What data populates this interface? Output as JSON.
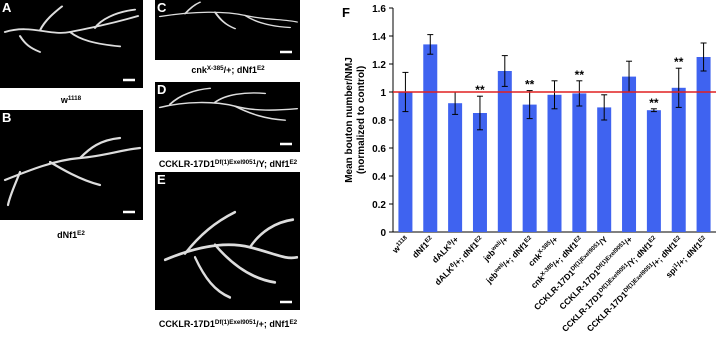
{
  "panels": [
    {
      "letter": "A",
      "caption": [
        {
          "text": "w"
        },
        {
          "sup": "1118"
        }
      ]
    },
    {
      "letter": "B",
      "caption": [
        {
          "text": "dNf1"
        },
        {
          "sup": "E2"
        }
      ]
    },
    {
      "letter": "C",
      "caption": [
        {
          "text": "cnk"
        },
        {
          "sup": "X-385"
        },
        {
          "text": "/+; dNf1"
        },
        {
          "sup": "E2"
        }
      ]
    },
    {
      "letter": "D",
      "caption": [
        {
          "text": "CCKLR-17D1"
        },
        {
          "sup": "Df(1)Exel9051"
        },
        {
          "text": "/Y; dNf1"
        },
        {
          "sup": "E2"
        }
      ]
    },
    {
      "letter": "E",
      "caption": [
        {
          "text": "CCKLR-17D1"
        },
        {
          "sup": "Df(1)Exel9051"
        },
        {
          "text": "/+; dNf1"
        },
        {
          "sup": "E2"
        }
      ]
    }
  ],
  "chart_data": {
    "type": "bar",
    "letter": "F",
    "ylabel": [
      "Mean bouton number/NMJ",
      "(normalized to control)"
    ],
    "categories": [
      [
        {
          "text": "w"
        },
        {
          "sup": "1118"
        }
      ],
      [
        {
          "text": "dNf1"
        },
        {
          "sup": "E2"
        }
      ],
      [
        {
          "text": "dALK"
        },
        {
          "sup": "8"
        },
        {
          "text": "/+"
        }
      ],
      [
        {
          "text": "dALK"
        },
        {
          "sup": "8"
        },
        {
          "text": "/+; dNf1"
        },
        {
          "sup": "E2"
        }
      ],
      [
        {
          "text": "jeb"
        },
        {
          "sup": "weli"
        },
        {
          "text": "/+"
        }
      ],
      [
        {
          "text": "jeb"
        },
        {
          "sup": "weli"
        },
        {
          "text": "/+; dNf1"
        },
        {
          "sup": "E2"
        }
      ],
      [
        {
          "text": "cnk"
        },
        {
          "sup": "X-385"
        },
        {
          "text": "/+"
        }
      ],
      [
        {
          "text": "cnk"
        },
        {
          "sup": "X-385"
        },
        {
          "text": "/+; dNf1"
        },
        {
          "sup": "E2"
        }
      ],
      [
        {
          "text": "CCKLR-17D1"
        },
        {
          "sup": "Df(1)Exel9051"
        },
        {
          "text": "/Y"
        }
      ],
      [
        {
          "text": "CCKLR-17D1"
        },
        {
          "sup": "Df(1)Exel9051"
        },
        {
          "text": "/+"
        }
      ],
      [
        {
          "text": "CCKLR-17D1"
        },
        {
          "sup": "Df(1)Exel9051"
        },
        {
          "text": "/Y; dNf1"
        },
        {
          "sup": "E2"
        }
      ],
      [
        {
          "text": "CCKLR-17D1"
        },
        {
          "sup": "Df(1)Exel9051"
        },
        {
          "text": "/+; dNf1"
        },
        {
          "sup": "E2"
        }
      ],
      [
        {
          "text": "spi"
        },
        {
          "sup": "1"
        },
        {
          "text": "/+; dNf1"
        },
        {
          "sup": "E2"
        }
      ]
    ],
    "values": [
      1.0,
      1.34,
      0.92,
      0.85,
      1.15,
      0.91,
      0.98,
      0.99,
      0.89,
      1.11,
      0.87,
      1.03,
      1.25
    ],
    "errors": [
      0.14,
      0.07,
      0.08,
      0.12,
      0.11,
      0.1,
      0.1,
      0.09,
      0.09,
      0.11,
      0.01,
      0.14,
      0.1
    ],
    "significance": [
      null,
      null,
      null,
      "**",
      null,
      "**",
      null,
      "**",
      null,
      null,
      "**",
      "**",
      null
    ],
    "color": "#3f63f0",
    "reference_line": {
      "value": 1,
      "color": "#e02020"
    },
    "ylim": [
      0,
      1.6
    ],
    "yticks": [
      0,
      0.2,
      0.4,
      0.6,
      0.8,
      1,
      1.2,
      1.4,
      1.6
    ]
  }
}
